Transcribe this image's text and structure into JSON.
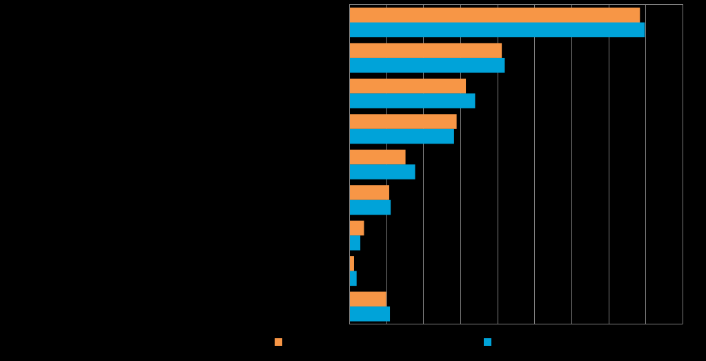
{
  "chart_data": {
    "type": "bar",
    "orientation": "horizontal",
    "categories": [
      "",
      "",
      "",
      "",
      "",
      "",
      "",
      "",
      ""
    ],
    "series": [
      {
        "color": "#f79646",
        "values": [
          78.5,
          41.2,
          31.5,
          29.0,
          15.2,
          10.8,
          4.0,
          1.3,
          10.0
        ]
      },
      {
        "color": "#00a3d9",
        "values": [
          79.8,
          42.0,
          34.0,
          28.3,
          17.8,
          11.2,
          3.0,
          2.0,
          11.0
        ]
      }
    ],
    "xlim": [
      0,
      90
    ],
    "x_gridlines": [
      0,
      10,
      20,
      30,
      40,
      50,
      60,
      70,
      80,
      90
    ],
    "grid": true,
    "legend_position": "bottom",
    "colors": {
      "background": "#000000",
      "gridline": "#808080",
      "axis": "#808080"
    }
  }
}
